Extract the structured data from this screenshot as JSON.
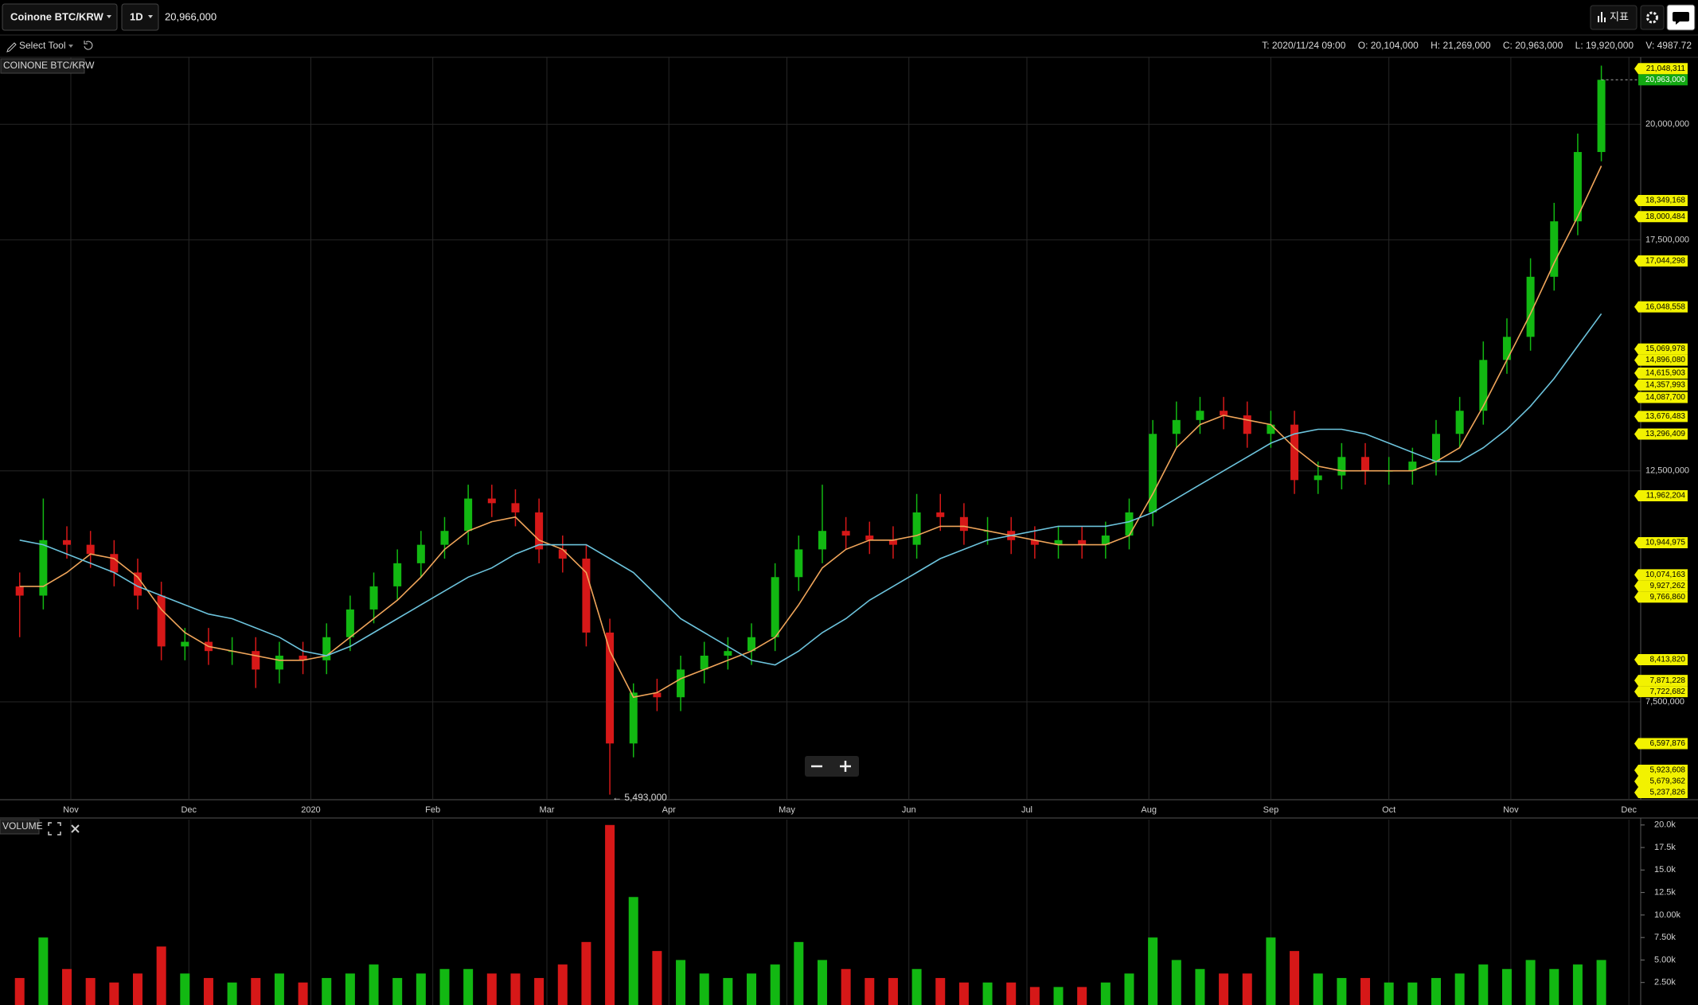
{
  "toolbar": {
    "symbol": "Coinone BTC/KRW",
    "interval": "1D",
    "price": "20,966,000",
    "tool": "Select Tool",
    "indicators": "지표",
    "ohlc": [
      "T: 2020/11/24 09:00",
      "O: 20,104,000",
      "H: 21,269,000",
      "C: 20,963,000",
      "L: 19,920,000",
      "V: 4987.72"
    ]
  },
  "chart_data": {
    "type": "candlestick",
    "title": "COINONE BTC/KRW",
    "up_color": "#12b812",
    "down_color": "#d61818",
    "x": [
      5,
      11,
      17,
      23,
      29,
      35,
      41,
      47,
      53,
      59,
      65,
      71,
      77,
      83,
      89,
      95,
      101,
      107,
      113,
      119,
      125,
      131,
      137,
      143,
      149,
      155,
      161,
      167,
      173,
      179,
      185,
      191,
      197,
      203,
      209,
      215,
      221,
      227,
      233,
      239,
      245,
      251,
      257,
      263,
      269,
      275,
      281,
      287,
      293,
      299,
      305,
      311,
      317,
      323,
      329,
      335,
      341,
      347,
      353,
      359,
      365,
      371,
      377,
      383,
      389,
      395,
      401,
      407
    ],
    "open": [
      10000000,
      9800000,
      11000000,
      10900000,
      10700000,
      10300000,
      9800000,
      8700000,
      8800000,
      8600000,
      8600000,
      8200000,
      8500000,
      8400000,
      8900000,
      9500000,
      10000000,
      10500000,
      10900000,
      11200000,
      11900000,
      11800000,
      11600000,
      10800000,
      10600000,
      9000000,
      6600000,
      7700000,
      7600000,
      8200000,
      8500000,
      8600000,
      8900000,
      10200000,
      10800000,
      11200000,
      11100000,
      11000000,
      10900000,
      11600000,
      11500000,
      11200000,
      11200000,
      11000000,
      10900000,
      11000000,
      10900000,
      11100000,
      11600000,
      13300000,
      13600000,
      13800000,
      13700000,
      13300000,
      13500000,
      12300000,
      12400000,
      12800000,
      12500000,
      12500000,
      12700000,
      13300000,
      13800000,
      14900000,
      15400000,
      16700000,
      17900000,
      19400000
    ],
    "high": [
      10300000,
      11900000,
      11300000,
      11200000,
      11000000,
      10600000,
      10100000,
      9100000,
      9100000,
      8900000,
      8900000,
      8800000,
      8800000,
      9200000,
      9800000,
      10300000,
      10800000,
      11200000,
      11500000,
      12200000,
      12200000,
      12100000,
      11900000,
      11100000,
      10900000,
      9300000,
      7900000,
      8000000,
      8500000,
      8800000,
      8900000,
      9200000,
      10500000,
      11100000,
      12200000,
      11500000,
      11400000,
      11300000,
      12000000,
      12000000,
      11800000,
      11500000,
      11500000,
      11300000,
      11300000,
      11300000,
      11400000,
      11900000,
      13600000,
      14000000,
      14100000,
      14100000,
      14000000,
      13800000,
      13800000,
      12700000,
      13100000,
      13100000,
      12800000,
      13000000,
      13600000,
      14100000,
      15300000,
      15800000,
      17100000,
      18300000,
      19800000,
      21269000
    ],
    "low": [
      8900000,
      9500000,
      10600000,
      10400000,
      10000000,
      9500000,
      8400000,
      8400000,
      8300000,
      8300000,
      7800000,
      7900000,
      8100000,
      8100000,
      8600000,
      9200000,
      9700000,
      10200000,
      10600000,
      10900000,
      11500000,
      11300000,
      10500000,
      10300000,
      8700000,
      5493000,
      6300000,
      7300000,
      7300000,
      7900000,
      8200000,
      8300000,
      8600000,
      9900000,
      10500000,
      10800000,
      10700000,
      10600000,
      10600000,
      11200000,
      10900000,
      10900000,
      10700000,
      10600000,
      10600000,
      10600000,
      10600000,
      10800000,
      11300000,
      13000000,
      13300000,
      13400000,
      13000000,
      13000000,
      12000000,
      12000000,
      12100000,
      12200000,
      12200000,
      12200000,
      12400000,
      13000000,
      13500000,
      14600000,
      15100000,
      16400000,
      17600000,
      19200000
    ],
    "close": [
      9800000,
      11000000,
      10900000,
      10700000,
      10300000,
      9800000,
      8700000,
      8800000,
      8600000,
      8600000,
      8200000,
      8500000,
      8400000,
      8900000,
      9500000,
      10000000,
      10500000,
      10900000,
      11200000,
      11900000,
      11800000,
      11600000,
      10800000,
      10600000,
      9000000,
      6600000,
      7700000,
      7600000,
      8200000,
      8500000,
      8600000,
      8900000,
      10200000,
      10800000,
      11200000,
      11100000,
      11000000,
      10900000,
      11600000,
      11500000,
      11200000,
      11200000,
      11000000,
      10900000,
      11000000,
      10900000,
      11100000,
      11600000,
      13300000,
      13600000,
      13800000,
      13700000,
      13300000,
      13500000,
      12300000,
      12400000,
      12800000,
      12500000,
      12500000,
      12700000,
      13300000,
      13800000,
      14900000,
      15400000,
      16700000,
      17900000,
      19400000,
      20963000
    ],
    "lines": [
      {
        "color": "#f0a55a",
        "values": [
          10000000,
          10000000,
          10300000,
          10700000,
          10600000,
          10200000,
          9500000,
          9000000,
          8700000,
          8600000,
          8500000,
          8400000,
          8400000,
          8500000,
          8900000,
          9300000,
          9700000,
          10200000,
          10800000,
          11200000,
          11400000,
          11500000,
          11000000,
          10800000,
          10300000,
          8600000,
          7600000,
          7700000,
          8000000,
          8200000,
          8400000,
          8600000,
          8900000,
          9600000,
          10400000,
          10800000,
          11000000,
          11000000,
          11100000,
          11300000,
          11300000,
          11200000,
          11100000,
          11000000,
          10900000,
          10900000,
          10900000,
          11100000,
          12000000,
          13000000,
          13500000,
          13700000,
          13600000,
          13500000,
          13000000,
          12600000,
          12500000,
          12500000,
          12500000,
          12500000,
          12700000,
          13000000,
          13900000,
          14900000,
          15900000,
          17000000,
          18000000,
          19100000
        ]
      },
      {
        "color": "#6cc3dc",
        "values": [
          11000000,
          10900000,
          10700000,
          10500000,
          10300000,
          10000000,
          9800000,
          9600000,
          9400000,
          9300000,
          9100000,
          8900000,
          8600000,
          8500000,
          8700000,
          9000000,
          9300000,
          9600000,
          9900000,
          10200000,
          10400000,
          10700000,
          10900000,
          10900000,
          10900000,
          10600000,
          10300000,
          9800000,
          9300000,
          9000000,
          8700000,
          8400000,
          8300000,
          8600000,
          9000000,
          9300000,
          9700000,
          10000000,
          10300000,
          10600000,
          10800000,
          11000000,
          11100000,
          11200000,
          11300000,
          11300000,
          11300000,
          11400000,
          11600000,
          11900000,
          12200000,
          12500000,
          12800000,
          13100000,
          13300000,
          13400000,
          13400000,
          13300000,
          13100000,
          12900000,
          12700000,
          12700000,
          13000000,
          13400000,
          13900000,
          14500000,
          15200000,
          15900000
        ]
      }
    ],
    "xlim": [
      0,
      417
    ],
    "xticks": [
      {
        "value": 18,
        "label": "Nov"
      },
      {
        "value": 48,
        "label": "Dec"
      },
      {
        "value": 79,
        "label": "2020"
      },
      {
        "value": 110,
        "label": "Feb"
      },
      {
        "value": 139,
        "label": "Mar"
      },
      {
        "value": 170,
        "label": "Apr"
      },
      {
        "value": 200,
        "label": "May"
      },
      {
        "value": 231,
        "label": "Jun"
      },
      {
        "value": 261,
        "label": "Jul"
      },
      {
        "value": 292,
        "label": "Aug"
      },
      {
        "value": 323,
        "label": "Sep"
      },
      {
        "value": 353,
        "label": "Oct"
      },
      {
        "value": 384,
        "label": "Nov"
      },
      {
        "value": 414,
        "label": "Dec"
      }
    ],
    "ylim": [
      5400000,
      21450000
    ],
    "yticks": [
      {
        "value": 7500000,
        "label": "7,500,000"
      },
      {
        "value": 12500000,
        "label": "12,500,000"
      },
      {
        "value": 17500000,
        "label": "17,500,000"
      },
      {
        "value": 20000000,
        "label": "20,000,000"
      }
    ],
    "grid": true,
    "current_price": {
      "value": 20963000,
      "label": "20,963,000",
      "color": "#12a812"
    },
    "price_levels": [
      {
        "value": 21048311,
        "label": "21,048,311"
      },
      {
        "value": 18349168,
        "label": "18,349,168"
      },
      {
        "value": 18000484,
        "label": "18,000,484"
      },
      {
        "value": 17044298,
        "label": "17,044,298"
      },
      {
        "value": 16048558,
        "label": "16,048,558"
      },
      {
        "value": 15069978,
        "label": "15,069,978"
      },
      {
        "value": 14896080,
        "label": "14,896,080"
      },
      {
        "value": 14615903,
        "label": "14,615,903"
      },
      {
        "value": 14357993,
        "label": "14,357,993"
      },
      {
        "value": 14087700,
        "label": "14,087,700"
      },
      {
        "value": 13676483,
        "label": "13,676,483"
      },
      {
        "value": 13296409,
        "label": "13,296,409"
      },
      {
        "value": 11962204,
        "label": "11,962,204"
      },
      {
        "value": 10944975,
        "label": "10,944,975"
      },
      {
        "value": 10074163,
        "label": "10,074,163"
      },
      {
        "value": 9927262,
        "label": "9,927,262"
      },
      {
        "value": 9766860,
        "label": "9,766,860"
      },
      {
        "value": 8413820,
        "label": "8,413,820"
      },
      {
        "value": 7871228,
        "label": "7,871,228"
      },
      {
        "value": 7722682,
        "label": "7,722,682"
      },
      {
        "value": 6597876,
        "label": "6,597,876"
      },
      {
        "value": 5923608,
        "label": "5,923,608"
      },
      {
        "value": 5679362,
        "label": "5,679,362"
      },
      {
        "value": 5237826,
        "label": "5,237,826"
      }
    ],
    "level_color": "#f2f200",
    "annotations": [
      {
        "x": 155,
        "value": 5493000,
        "label": "← 5,493,000"
      }
    ],
    "volume": {
      "title": "VOLUME",
      "values": [
        3000,
        7500,
        4000,
        3000,
        2500,
        3500,
        6500,
        3500,
        3000,
        2500,
        3000,
        3500,
        2500,
        3000,
        3500,
        4500,
        3000,
        3500,
        4000,
        4000,
        3500,
        3500,
        3000,
        4500,
        7000,
        20000,
        12000,
        6000,
        5000,
        3500,
        3000,
        3500,
        4500,
        7000,
        5000,
        4000,
        3000,
        3000,
        4000,
        3000,
        2500,
        2500,
        2500,
        2000,
        2000,
        2000,
        2500,
        3500,
        7500,
        5000,
        4000,
        3500,
        3500,
        7500,
        6000,
        3500,
        3000,
        3000,
        2500,
        2500,
        3000,
        3500,
        4500,
        4000,
        5000,
        4000,
        4500,
        5000
      ],
      "ylim": [
        0,
        20600
      ],
      "yticks": [
        {
          "value": 2500,
          "label": "2.50k"
        },
        {
          "value": 5000,
          "label": "5.00k"
        },
        {
          "value": 7500,
          "label": "7.50k"
        },
        {
          "value": 10000,
          "label": "10.00k"
        },
        {
          "value": 12500,
          "label": "12.5k"
        },
        {
          "value": 15000,
          "label": "15.0k"
        },
        {
          "value": 17500,
          "label": "17.5k"
        },
        {
          "value": 20000,
          "label": "20.0k"
        }
      ]
    }
  }
}
